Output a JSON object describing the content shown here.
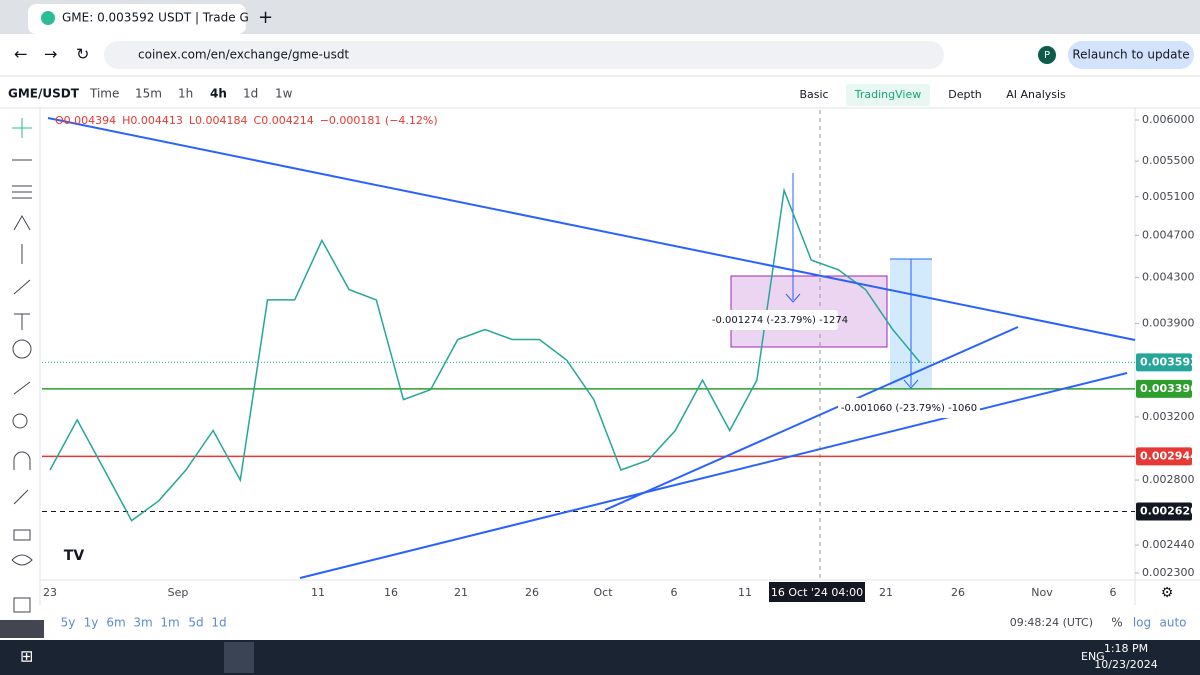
{
  "browser": {
    "tab_title": "GME: 0.003592 USDT | Trade G",
    "url": "coinex.com/en/exchange/gme-usdt",
    "relaunch": "Relaunch to update",
    "profile": "P"
  },
  "toolbar": {
    "symbol": "GME/USDT",
    "intervals": [
      "Time",
      "15m",
      "1h",
      "4h",
      "1d",
      "1w"
    ],
    "views": [
      "Basic",
      "TradingView",
      "Depth",
      "AI Analysis"
    ]
  },
  "chart_data": {
    "type": "line",
    "log_scale": true,
    "color": "#26a69a",
    "legend_ohlc": [
      "O0.004394",
      "H0.004413",
      "L0.004184",
      "C0.004214",
      "−0.000181 (−4.12%)"
    ],
    "ylim": [
      0.0023,
      0.006
    ],
    "yticks": [
      {
        "value": 0.006,
        "label": "0.006000"
      },
      {
        "value": 0.0055,
        "label": "0.005500"
      },
      {
        "value": 0.0051,
        "label": "0.005100"
      },
      {
        "value": 0.0047,
        "label": "0.004700"
      },
      {
        "value": 0.0043,
        "label": "0.004300"
      },
      {
        "value": 0.0039,
        "label": "0.003900"
      },
      {
        "value": 0.0032,
        "label": "0.003200"
      },
      {
        "value": 0.0028,
        "label": "0.002800"
      },
      {
        "value": 0.00244,
        "label": "0.002440"
      },
      {
        "value": 0.0023,
        "label": "0.002300"
      }
    ],
    "price_lines": [
      {
        "value": 0.003592,
        "label": "0.003592",
        "color": "#26a69a",
        "style": "dotted"
      },
      {
        "value": 0.003396,
        "label": "0.003396",
        "color": "#2e9e2e",
        "style": "solid"
      },
      {
        "value": 0.002944,
        "label": "0.002944",
        "color": "#e53935",
        "style": "solid"
      },
      {
        "value": 0.00262,
        "label": "0.002620",
        "color": "#131722",
        "style": "dashed"
      }
    ],
    "x_labels": [
      "23",
      "Sep",
      "11",
      "16",
      "21",
      "26",
      "Oct",
      "6",
      "11",
      "21",
      "26",
      "Nov",
      "6"
    ],
    "crosshair_label": "16 Oct '24  04:00",
    "values": [
      0.00286,
      0.00318,
      0.00286,
      0.00257,
      0.00268,
      0.00286,
      0.00311,
      0.0028,
      0.0041,
      0.0041,
      0.00465,
      0.00419,
      0.0041,
      0.00332,
      0.00339,
      0.00377,
      0.00385,
      0.00377,
      0.00377,
      0.00361,
      0.00332,
      0.00286,
      0.00292,
      0.00311,
      0.00346,
      0.00311,
      0.00346,
      0.00517,
      0.00446,
      0.00437,
      0.00419,
      0.00385,
      0.003592
    ],
    "annotations": [
      "-0.001274 (-23.79%) -1274",
      "-0.001060 (-23.79%) -1060"
    ]
  },
  "bottom": {
    "ranges": [
      "5y",
      "1y",
      "6m",
      "3m",
      "1m",
      "5d",
      "1d"
    ],
    "clock": "09:48:24 (UTC)",
    "options": [
      "%",
      "log",
      "auto"
    ]
  },
  "taskbar": {
    "lang": "ENG",
    "time": "1:18 PM",
    "date": "10/23/2024"
  }
}
